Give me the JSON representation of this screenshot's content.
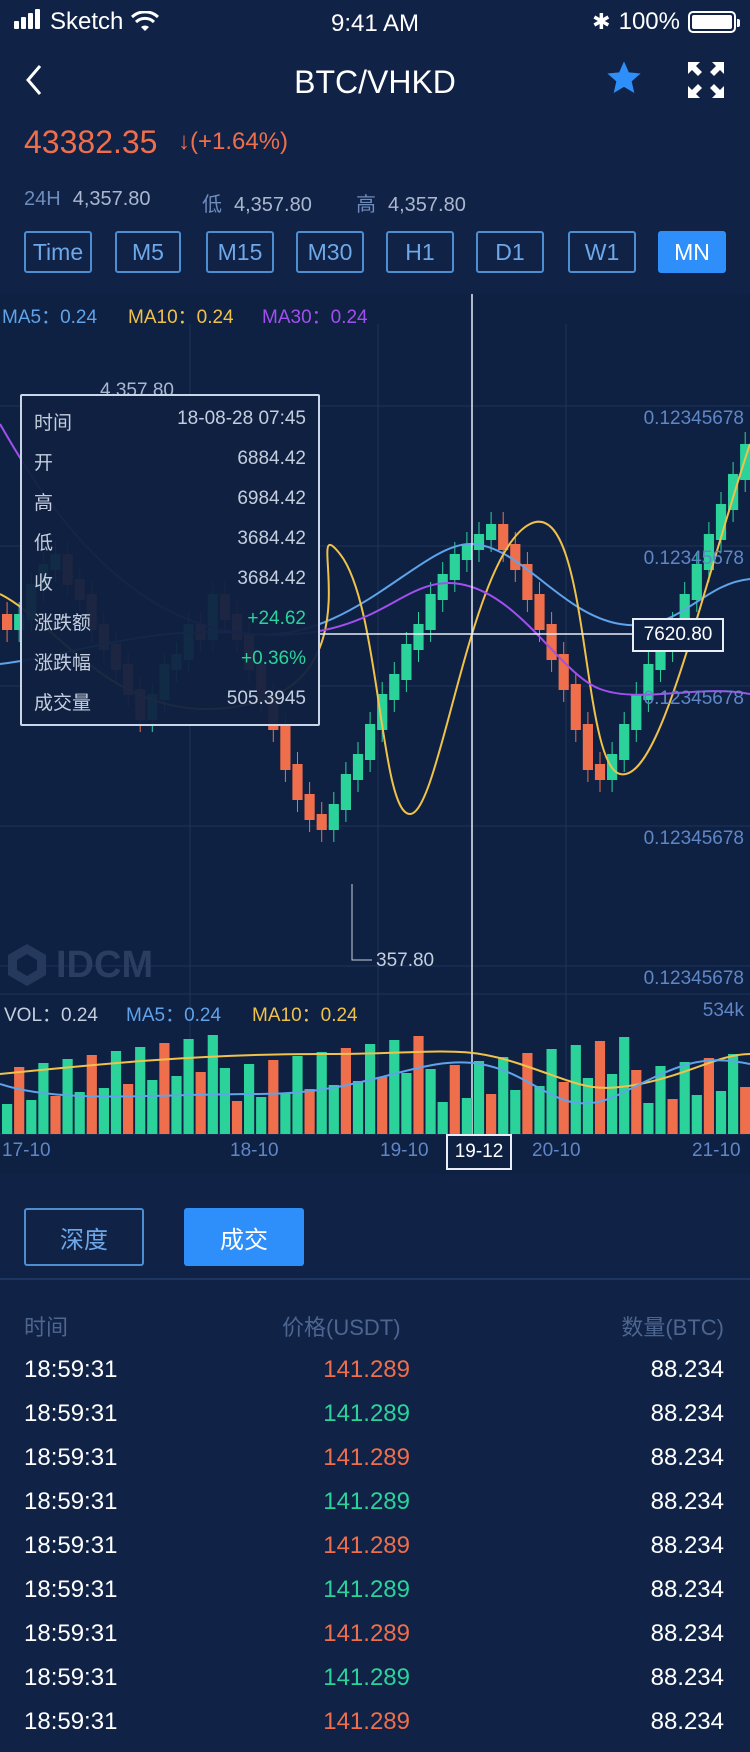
{
  "status": {
    "carrier": "Sketch",
    "time": "9:41 AM",
    "battery": "100%"
  },
  "nav": {
    "title": "BTC/VHKD",
    "back_icon": "chevron-left-icon",
    "star_icon": "star-icon",
    "fullscreen_icon": "fullscreen-icon"
  },
  "ticker": {
    "price": "43382.35",
    "change": "↓(+1.64%)",
    "stats": [
      {
        "k": "24H",
        "v": "4,357.80"
      },
      {
        "k": "低",
        "v": "4,357.80"
      },
      {
        "k": "高",
        "v": "4,357.80"
      }
    ]
  },
  "tabs": [
    "Time",
    "M5",
    "M15",
    "M30",
    "H1",
    "D1",
    "W1",
    "MN"
  ],
  "active_tab": "MN",
  "chart": {
    "ma_main": [
      {
        "label": "MA5：0.24",
        "color": "#5fa3ea"
      },
      {
        "label": "MA10：0.24",
        "color": "#f0c24a"
      },
      {
        "label": "MA30：0.24",
        "color": "#a24ff0"
      }
    ],
    "ma_vol": [
      {
        "label": "VOL：0.24",
        "color": "#c4cede"
      },
      {
        "label": "MA5：0.24",
        "color": "#5fa3ea"
      },
      {
        "label": "MA10：0.24",
        "color": "#f0c24a"
      }
    ],
    "price_levels": [
      "0.12345678",
      "0.12345678",
      "0.12345678",
      "0.12345678",
      "0.12345678"
    ],
    "high_label": "4,357.80",
    "low_label": "357.80",
    "vol_max": "534k",
    "x_ticks": [
      "17-10",
      "18-10",
      "19-10",
      "20-10",
      "21-10"
    ],
    "cross_price": "7620.80",
    "cross_date": "19-12",
    "watermark": "IDCM",
    "tooltip": [
      {
        "k": "时间",
        "v": "18-08-28 07:45",
        "cls": ""
      },
      {
        "k": "开",
        "v": "6884.42",
        "cls": ""
      },
      {
        "k": "高",
        "v": "6984.42",
        "cls": ""
      },
      {
        "k": "低",
        "v": "3684.42",
        "cls": ""
      },
      {
        "k": "收",
        "v": "3684.42",
        "cls": ""
      },
      {
        "k": "涨跌额",
        "v": "+24.62",
        "cls": "up"
      },
      {
        "k": "涨跌幅",
        "v": "+0.36%",
        "cls": "up"
      },
      {
        "k": "成交量",
        "v": "505.3945",
        "cls": ""
      }
    ],
    "colors": {
      "up": "#2bd39b",
      "down": "#ef6e4c"
    }
  },
  "trades": {
    "depth_label": "深度",
    "trade_label": "成交",
    "headers": {
      "time": "时间",
      "price": "价格(USDT)",
      "qty": "数量(BTC)"
    },
    "rows": [
      {
        "t": "18:59:31",
        "p": "141.289",
        "q": "88.234",
        "dir": "down"
      },
      {
        "t": "18:59:31",
        "p": "141.289",
        "q": "88.234",
        "dir": "up"
      },
      {
        "t": "18:59:31",
        "p": "141.289",
        "q": "88.234",
        "dir": "down"
      },
      {
        "t": "18:59:31",
        "p": "141.289",
        "q": "88.234",
        "dir": "up"
      },
      {
        "t": "18:59:31",
        "p": "141.289",
        "q": "88.234",
        "dir": "down"
      },
      {
        "t": "18:59:31",
        "p": "141.289",
        "q": "88.234",
        "dir": "up"
      },
      {
        "t": "18:59:31",
        "p": "141.289",
        "q": "88.234",
        "dir": "down"
      },
      {
        "t": "18:59:31",
        "p": "141.289",
        "q": "88.234",
        "dir": "up"
      },
      {
        "t": "18:59:31",
        "p": "141.289",
        "q": "88.234",
        "dir": "down"
      }
    ]
  }
}
